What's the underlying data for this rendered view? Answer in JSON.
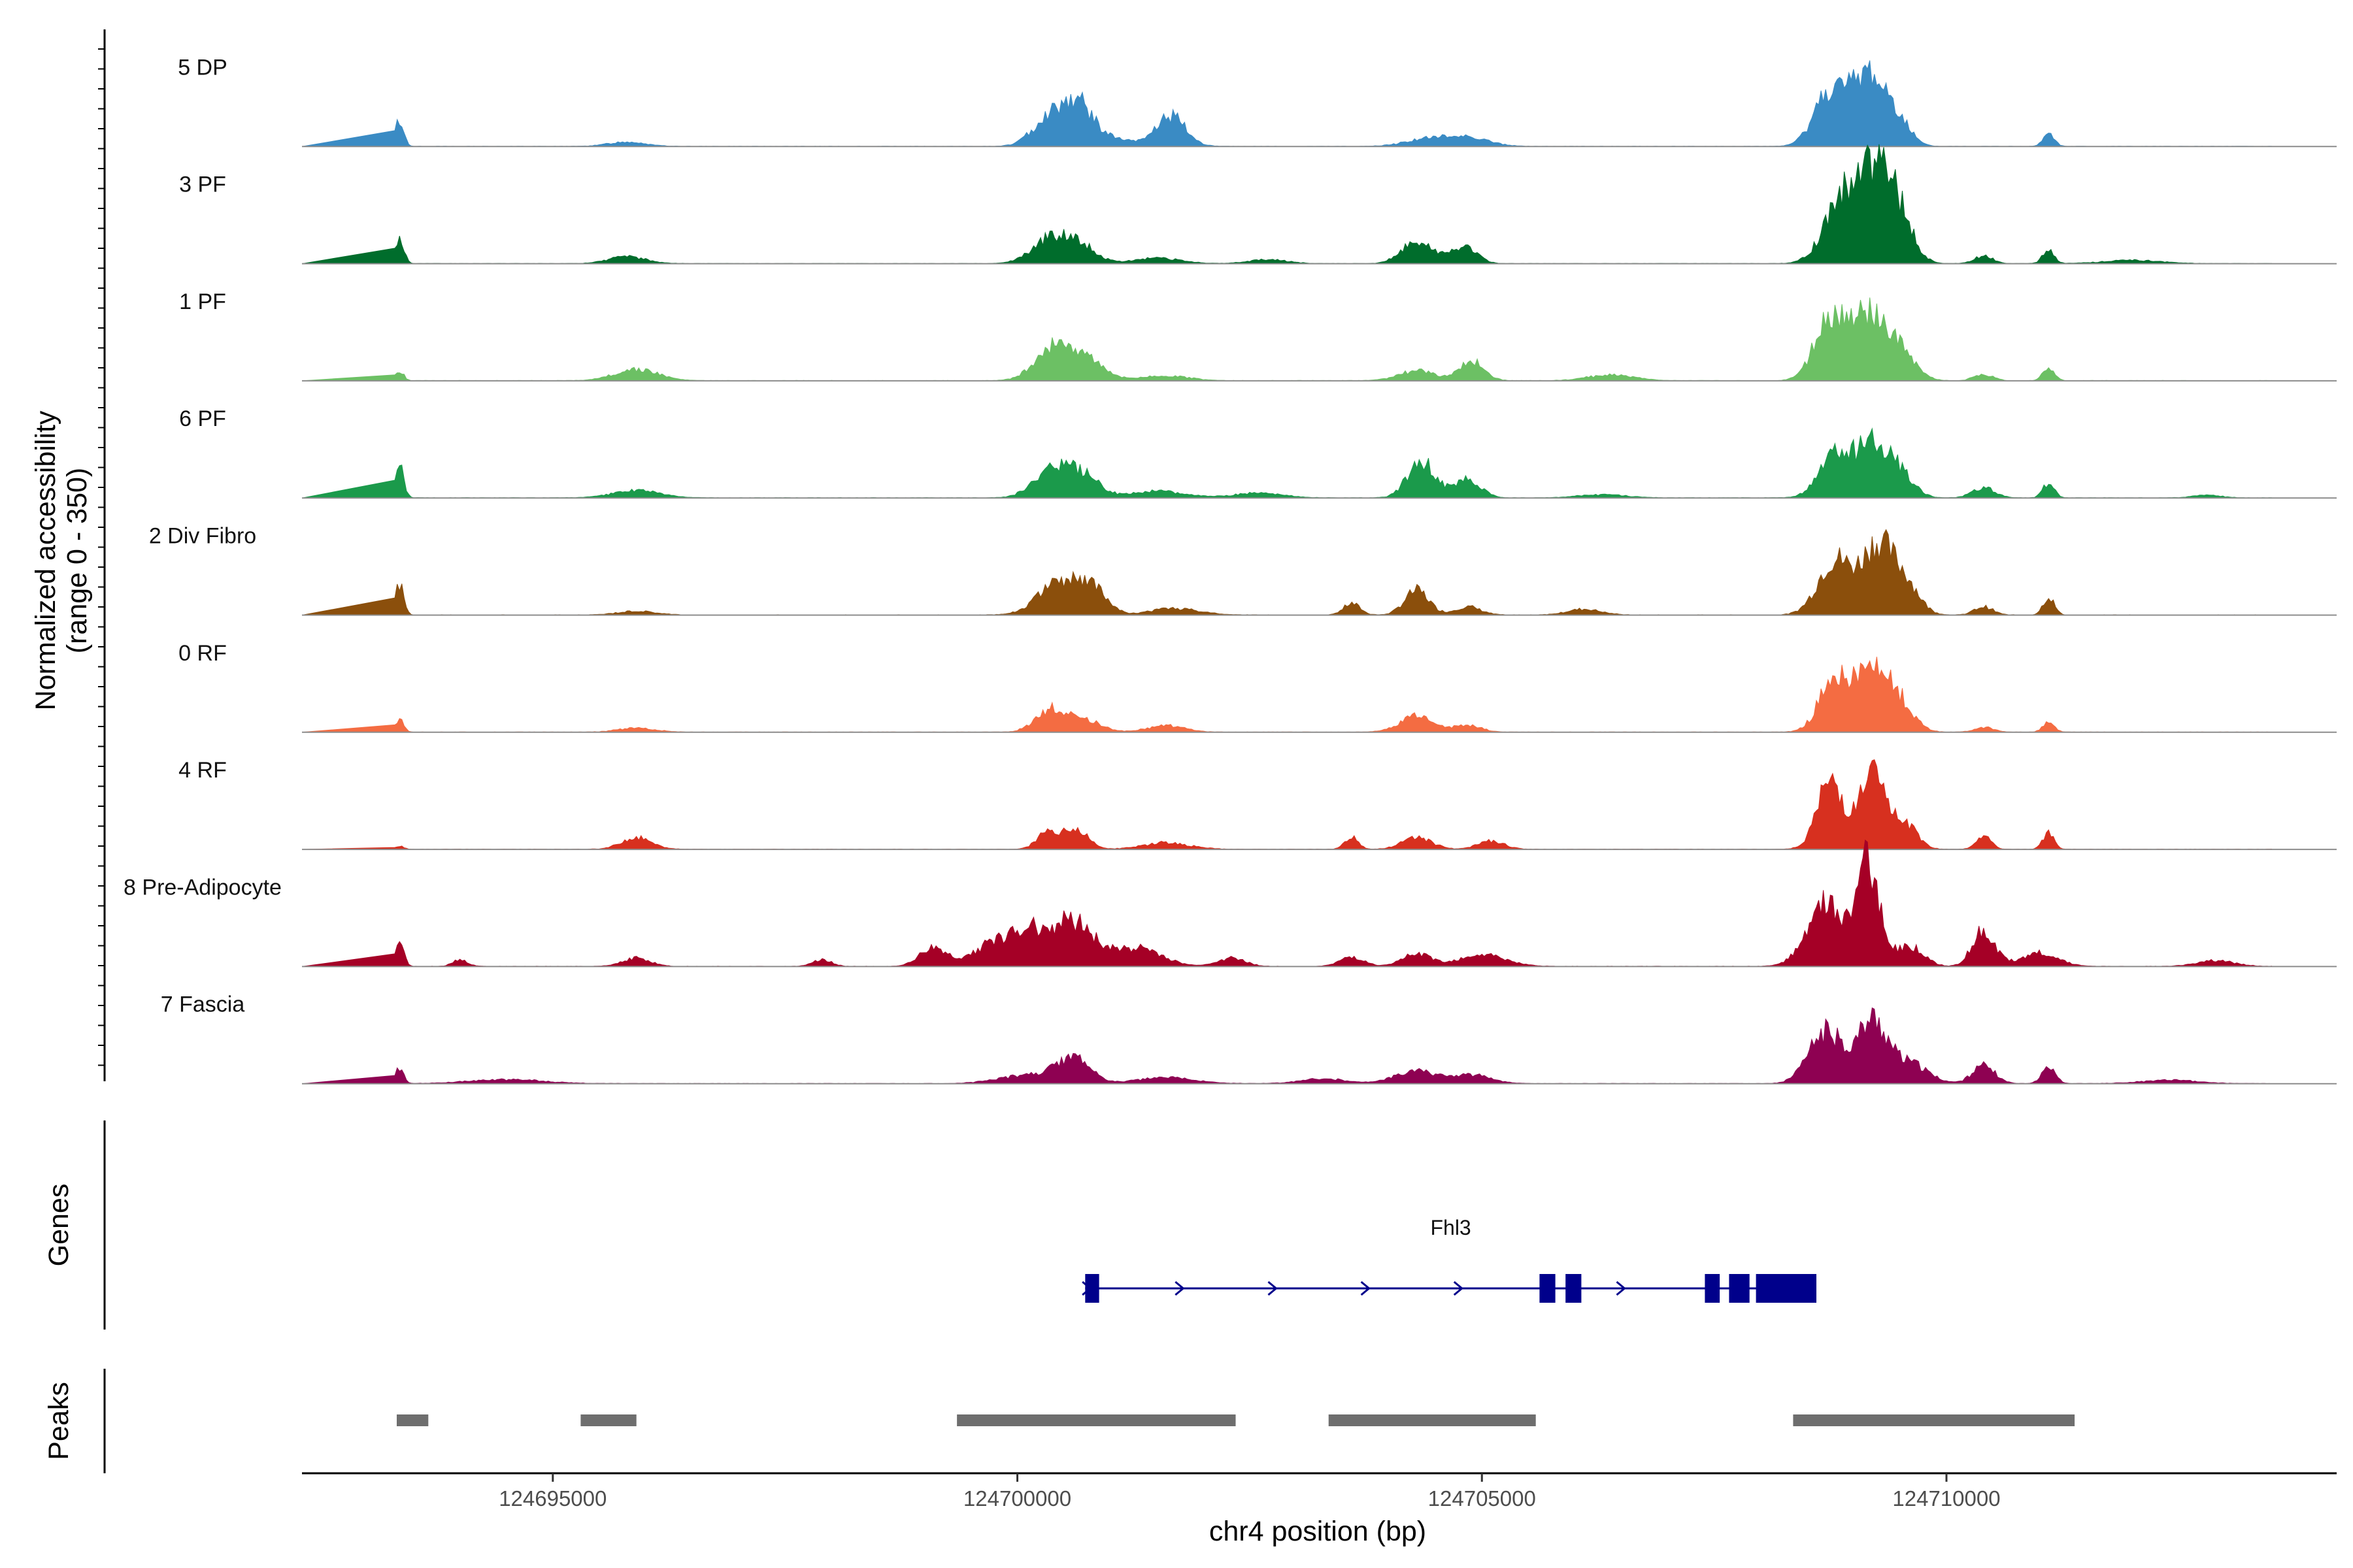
{
  "chart_data": {
    "type": "area",
    "title": "",
    "ylabel_line1": "Normalized accessibility",
    "ylabel_line2": "(range 0 - 350)",
    "ylim": [
      0,
      350
    ],
    "xlabel": "chr4 position (bp)",
    "xlim": [
      124692300,
      124714200
    ],
    "x_ticks": [
      124695000,
      124700000,
      124705000,
      124710000
    ],
    "x_tick_labels": [
      "124695000",
      "124700000",
      "124705000",
      "124710000"
    ],
    "tracks": [
      {
        "name": "5 DP",
        "color": "#3a8bc4",
        "peaks": [
          [
            124693350,
            80,
            45
          ],
          [
            124695800,
            14,
            200
          ],
          [
            124700350,
            90,
            180
          ],
          [
            124700650,
            105,
            150
          ],
          [
            124701650,
            92,
            160
          ],
          [
            124700900,
            30,
            260
          ],
          [
            124704400,
            22,
            230
          ],
          [
            124704850,
            28,
            220
          ],
          [
            124708750,
            175,
            170
          ],
          [
            124709150,
            210,
            160
          ],
          [
            124709450,
            95,
            140
          ],
          [
            124711100,
            42,
            60
          ]
        ]
      },
      {
        "name": "3 PF",
        "color": "#006d2c",
        "peaks": [
          [
            124693350,
            80,
            45
          ],
          [
            124695800,
            20,
            200
          ],
          [
            124700350,
            70,
            200
          ],
          [
            124700650,
            55,
            180
          ],
          [
            124701500,
            16,
            250
          ],
          [
            124702700,
            12,
            200
          ],
          [
            124704300,
            70,
            160
          ],
          [
            124704800,
            50,
            140
          ],
          [
            124708900,
            200,
            200
          ],
          [
            124709250,
            235,
            180
          ],
          [
            124709500,
            110,
            150
          ],
          [
            124710400,
            22,
            100
          ],
          [
            124711100,
            45,
            60
          ],
          [
            124712000,
            10,
            300
          ]
        ]
      },
      {
        "name": "1 PF",
        "color": "#6cc064",
        "peaks": [
          [
            124693350,
            30,
            45
          ],
          [
            124695900,
            35,
            230
          ],
          [
            124700400,
            105,
            200
          ],
          [
            124700750,
            55,
            200
          ],
          [
            124701600,
            15,
            250
          ],
          [
            124704300,
            30,
            200
          ],
          [
            124704900,
            60,
            130
          ],
          [
            124706400,
            18,
            250
          ],
          [
            124708750,
            185,
            170
          ],
          [
            124709150,
            200,
            170
          ],
          [
            124709500,
            90,
            160
          ],
          [
            124710400,
            20,
            100
          ],
          [
            124711100,
            38,
            60
          ]
        ]
      },
      {
        "name": "6 PF",
        "color": "#1b9a4b",
        "peaks": [
          [
            124693350,
            95,
            45
          ],
          [
            124695900,
            22,
            250
          ],
          [
            124700400,
            100,
            200
          ],
          [
            124700750,
            50,
            160
          ],
          [
            124701500,
            20,
            300
          ],
          [
            124702600,
            16,
            250
          ],
          [
            124704350,
            110,
            150
          ],
          [
            124704850,
            55,
            140
          ],
          [
            124706300,
            10,
            250
          ],
          [
            124708800,
            130,
            170
          ],
          [
            124709200,
            170,
            160
          ],
          [
            124709500,
            70,
            150
          ],
          [
            124710400,
            30,
            120
          ],
          [
            124711100,
            45,
            60
          ],
          [
            124712800,
            8,
            150
          ]
        ]
      },
      {
        "name": "2 Div Fibro",
        "color": "#8b4f0c",
        "peaks": [
          [
            124693350,
            95,
            45
          ],
          [
            124695900,
            12,
            200
          ],
          [
            124700450,
            100,
            220
          ],
          [
            124700800,
            75,
            160
          ],
          [
            124701700,
            20,
            250
          ],
          [
            124703600,
            35,
            90
          ],
          [
            124704300,
            75,
            130
          ],
          [
            124704850,
            25,
            140
          ],
          [
            124706100,
            18,
            180
          ],
          [
            124708800,
            170,
            180
          ],
          [
            124709250,
            205,
            160
          ],
          [
            124709550,
            100,
            150
          ],
          [
            124710400,
            25,
            100
          ],
          [
            124711100,
            55,
            60
          ]
        ]
      },
      {
        "name": "0 RF",
        "color": "#f46c42",
        "peaks": [
          [
            124693350,
            40,
            45
          ],
          [
            124695900,
            12,
            200
          ],
          [
            124700350,
            65,
            160
          ],
          [
            124700700,
            40,
            180
          ],
          [
            124701600,
            20,
            200
          ],
          [
            124704300,
            48,
            180
          ],
          [
            124704850,
            22,
            140
          ],
          [
            124708800,
            170,
            160
          ],
          [
            124709200,
            195,
            160
          ],
          [
            124709500,
            85,
            150
          ],
          [
            124710400,
            15,
            100
          ],
          [
            124711100,
            30,
            60
          ]
        ]
      },
      {
        "name": "4 RF",
        "color": "#d7301f",
        "peaks": [
          [
            124693350,
            10,
            45
          ],
          [
            124695900,
            35,
            160
          ],
          [
            124700350,
            60,
            120
          ],
          [
            124700650,
            55,
            120
          ],
          [
            124701600,
            20,
            250
          ],
          [
            124703600,
            40,
            70
          ],
          [
            124704300,
            35,
            160
          ],
          [
            124705100,
            25,
            140
          ],
          [
            124708750,
            205,
            140
          ],
          [
            124709200,
            225,
            140
          ],
          [
            124709550,
            80,
            130
          ],
          [
            124710400,
            40,
            80
          ],
          [
            124711100,
            48,
            60
          ]
        ]
      },
      {
        "name": "8 Pre-Adipocyte",
        "color": "#a50026",
        "peaks": [
          [
            124693350,
            75,
            45
          ],
          [
            124694000,
            20,
            80
          ],
          [
            124695900,
            25,
            150
          ],
          [
            124697900,
            20,
            100
          ],
          [
            124699100,
            55,
            150
          ],
          [
            124699700,
            60,
            200
          ],
          [
            124700100,
            100,
            200
          ],
          [
            124700600,
            135,
            230
          ],
          [
            124701300,
            55,
            250
          ],
          [
            124702300,
            25,
            150
          ],
          [
            124703600,
            28,
            130
          ],
          [
            124704300,
            38,
            150
          ],
          [
            124705000,
            35,
            250
          ],
          [
            124708700,
            190,
            200
          ],
          [
            124709150,
            295,
            130
          ],
          [
            124709600,
            60,
            150
          ],
          [
            124710400,
            110,
            120
          ],
          [
            124711000,
            40,
            200
          ],
          [
            124712900,
            18,
            200
          ]
        ]
      },
      {
        "name": "7 Fascia",
        "color": "#8e0152",
        "peaks": [
          [
            124693350,
            50,
            45
          ],
          [
            124694500,
            12,
            400
          ],
          [
            124700100,
            25,
            300
          ],
          [
            124700600,
            75,
            180
          ],
          [
            124701600,
            18,
            300
          ],
          [
            124703300,
            14,
            250
          ],
          [
            124704300,
            40,
            220
          ],
          [
            124704900,
            25,
            200
          ],
          [
            124708700,
            160,
            180
          ],
          [
            124709200,
            190,
            160
          ],
          [
            124709600,
            60,
            200
          ],
          [
            124710400,
            55,
            120
          ],
          [
            124711100,
            50,
            70
          ],
          [
            124712400,
            10,
            300
          ]
        ]
      }
    ],
    "genes_label": "Genes",
    "gene": {
      "name": "Fhl3",
      "start": 124700730,
      "end": 124708600,
      "strand": "+",
      "exons": [
        [
          124700730,
          124700880
        ],
        [
          124705620,
          124705790
        ],
        [
          124705900,
          124706070
        ],
        [
          124707400,
          124707560
        ],
        [
          124707660,
          124707880
        ],
        [
          124707950,
          124708600
        ]
      ],
      "intron_arrows": [
        124700750,
        124701750,
        124702750,
        124703750,
        124704750,
        124706500
      ]
    },
    "peaks_label": "Peaks",
    "peak_regions": [
      [
        124693320,
        124693660
      ],
      [
        124695300,
        124695900
      ],
      [
        124699350,
        124702350
      ],
      [
        124703350,
        124705580
      ],
      [
        124708350,
        124711380
      ]
    ]
  }
}
